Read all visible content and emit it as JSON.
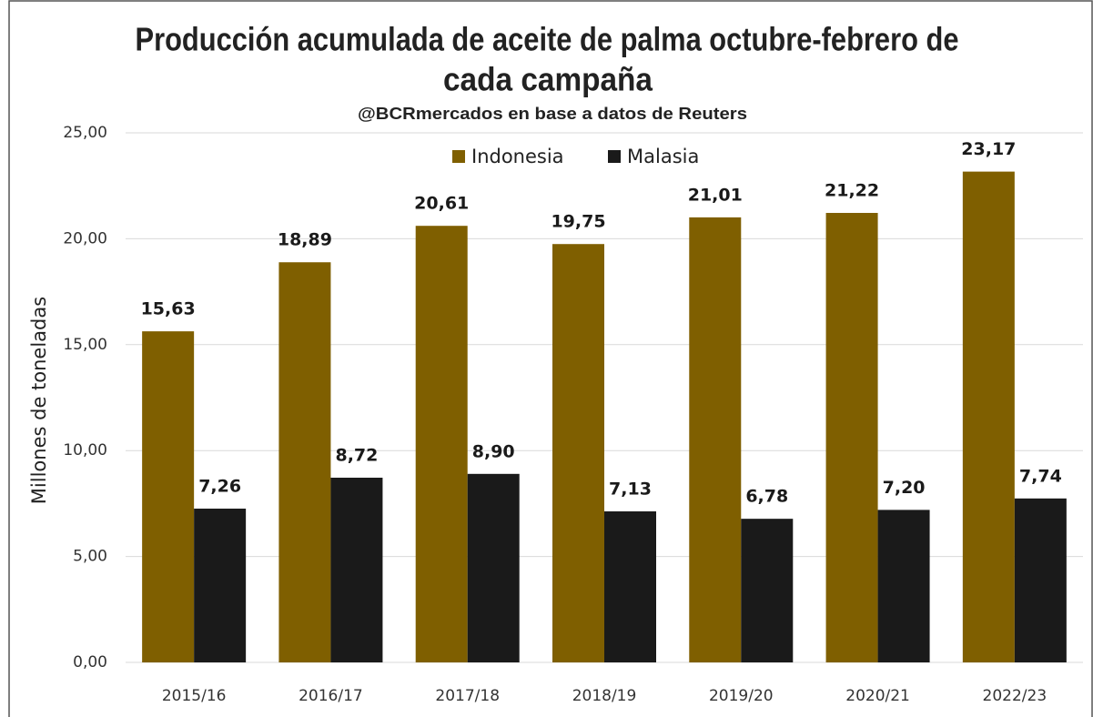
{
  "chart_data": {
    "type": "bar",
    "title": [
      "Producción acumulada de aceite de palma octubre-febrero de",
      "cada campaña"
    ],
    "subtitle": "@BCRmercados en base a datos de Reuters",
    "y_label": "Millones de toneladas",
    "categories": [
      "2015/16",
      "2016/17",
      "2017/18",
      "2018/19",
      "2019/20",
      "2020/21",
      "2022/23"
    ],
    "series": [
      {
        "name": "Indonesia",
        "color": "#7f5f00",
        "values": [
          15.63,
          18.89,
          20.61,
          19.75,
          21.01,
          21.22,
          23.17
        ],
        "value_labels": [
          "15,63",
          "18,89",
          "20,61",
          "19,75",
          "21,01",
          "21,22",
          "23,17"
        ]
      },
      {
        "name": "Malasia",
        "color": "#1a1a1a",
        "values": [
          7.26,
          8.72,
          8.9,
          7.13,
          6.78,
          7.2,
          7.74
        ],
        "value_labels": [
          "7,26",
          "8,72",
          "8,90",
          "7,13",
          "6,78",
          "7,20",
          "7,74"
        ]
      }
    ],
    "ylim": [
      0,
      25
    ],
    "yticks": [
      {
        "value": 0,
        "label": "0,00"
      },
      {
        "value": 5,
        "label": "5,00"
      },
      {
        "value": 10,
        "label": "10,00"
      },
      {
        "value": 15,
        "label": "15,00"
      },
      {
        "value": 20,
        "label": "20,00"
      },
      {
        "value": 25,
        "label": "25,00"
      }
    ],
    "grid": true,
    "legend": "top"
  }
}
